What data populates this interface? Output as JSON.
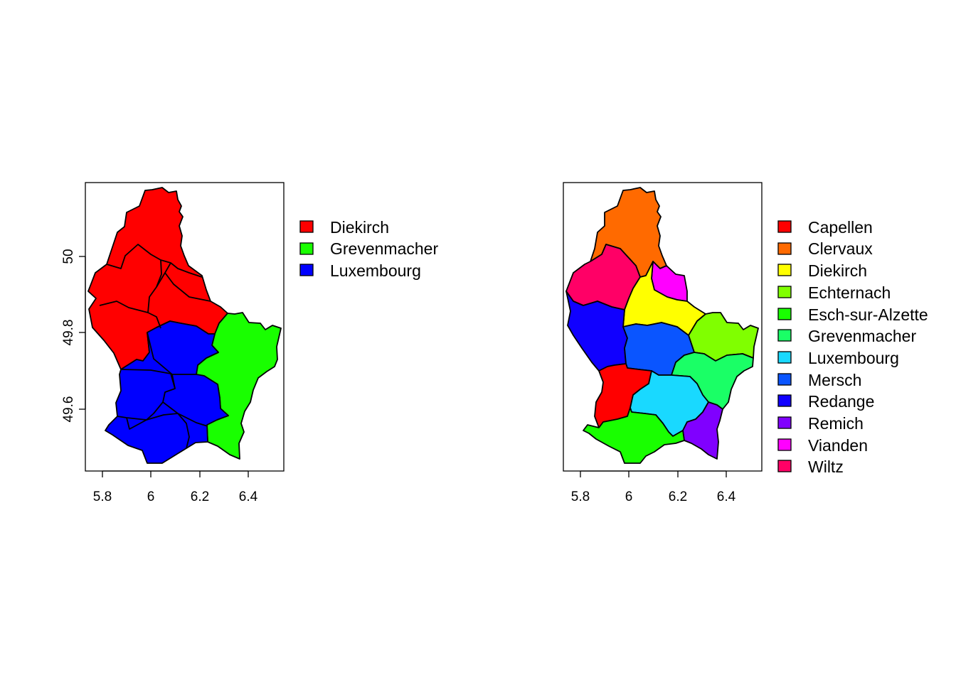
{
  "chart_data": [
    {
      "type": "choropleth map",
      "title": "",
      "xlabel": "",
      "ylabel": "",
      "xlim": [
        5.73,
        6.53
      ],
      "ylim": [
        49.44,
        50.19
      ],
      "x_ticks": [
        "5.8",
        "6",
        "6.2",
        "6.4"
      ],
      "y_ticks": [
        "49.6",
        "49.8",
        "50"
      ],
      "legend_position": "right",
      "legend": [
        {
          "label": "Diekirch",
          "color": "#ff0000"
        },
        {
          "label": "Grevenmacher",
          "color": "#19ff00"
        },
        {
          "label": "Luxembourg",
          "color": "#0000ff"
        }
      ]
    },
    {
      "type": "choropleth map",
      "title": "",
      "xlabel": "",
      "ylabel": "",
      "xlim": [
        5.73,
        6.53
      ],
      "ylim": [
        49.44,
        50.19
      ],
      "x_ticks": [
        "5.8",
        "6",
        "6.2",
        "6.4"
      ],
      "y_ticks": [],
      "legend_position": "right",
      "legend": [
        {
          "label": "Capellen",
          "color": "#ff0000"
        },
        {
          "label": "Clervaux",
          "color": "#ff6a00"
        },
        {
          "label": "Diekirch",
          "color": "#ffff00"
        },
        {
          "label": "Echternach",
          "color": "#80ff00"
        },
        {
          "label": "Esch-sur-Alzette",
          "color": "#19ff00"
        },
        {
          "label": "Grevenmacher",
          "color": "#1aff66"
        },
        {
          "label": "Luxembourg",
          "color": "#19d9ff"
        },
        {
          "label": "Mersch",
          "color": "#0a55ff"
        },
        {
          "label": "Redange",
          "color": "#1000ff"
        },
        {
          "label": "Remich",
          "color": "#8000ff"
        },
        {
          "label": "Vianden",
          "color": "#ff00ff"
        },
        {
          "label": "Wiltz",
          "color": "#ff0066"
        }
      ]
    }
  ]
}
